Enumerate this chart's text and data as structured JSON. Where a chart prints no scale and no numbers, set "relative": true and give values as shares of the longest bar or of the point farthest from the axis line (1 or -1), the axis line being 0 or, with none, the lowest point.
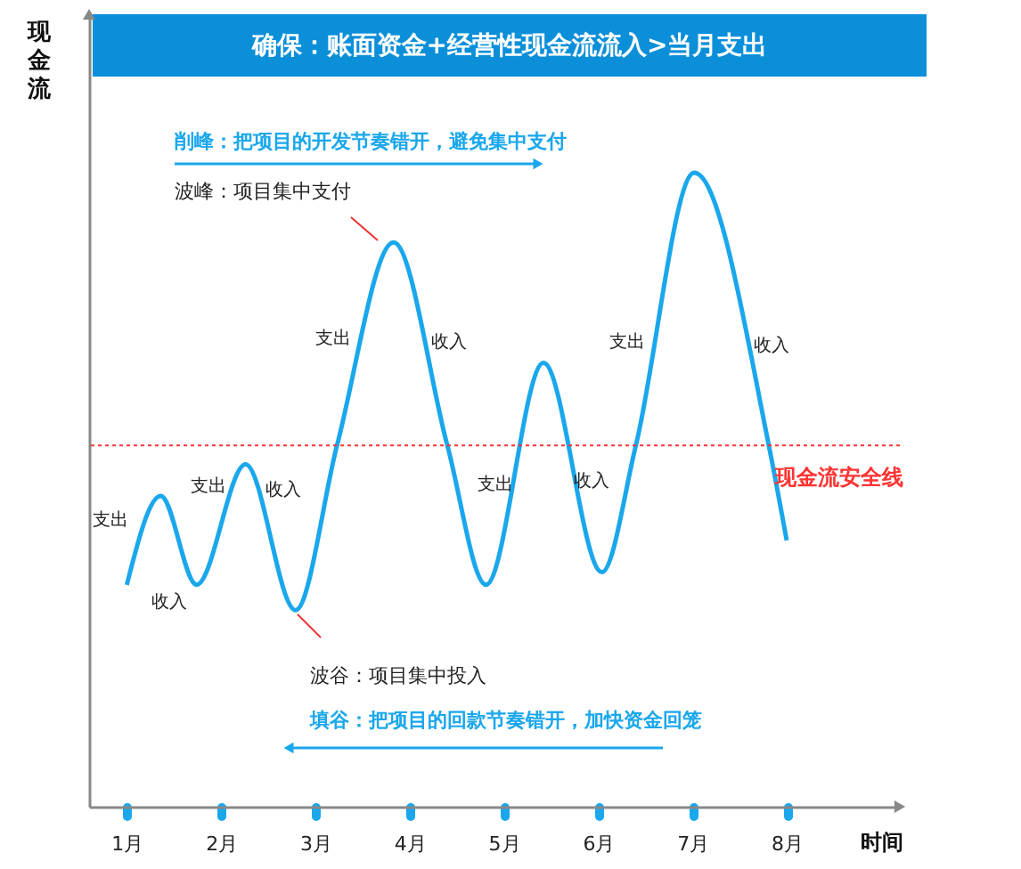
{
  "chart_data": {
    "type": "line",
    "relative": true,
    "title": "确保：账面资金+经营性现金流流入>当月支出",
    "ylabel": "现金流",
    "xlabel": "时间",
    "xlim": [
      0.6,
      9.2
    ],
    "xticks": [
      {
        "value": 1,
        "label": "1月"
      },
      {
        "value": 2,
        "label": "2月"
      },
      {
        "value": 3,
        "label": "3月"
      },
      {
        "value": 4,
        "label": "4月"
      },
      {
        "value": 5,
        "label": "5月"
      },
      {
        "value": 6,
        "label": "6月"
      },
      {
        "value": 7,
        "label": "7月"
      },
      {
        "value": 8,
        "label": "8月"
      }
    ],
    "series": [
      {
        "color": "#1aa7ec",
        "x": [
          1.0,
          1.36,
          1.74,
          2.26,
          2.79,
          3.23,
          3.83,
          4.4,
          4.81,
          5.42,
          6.04,
          6.4,
          7.02,
          7.81,
          8.0
        ],
        "values": [
          0.35,
          0.49,
          0.35,
          0.54,
          0.31,
          0.57,
          0.89,
          0.57,
          0.35,
          0.7,
          0.37,
          0.57,
          1.0,
          0.57,
          0.42
        ]
      }
    ],
    "ref_lines": [
      {
        "axis": "y",
        "value": 0.57,
        "label": "现金流安全线",
        "color": "#ff3333",
        "line_style": "dotted"
      }
    ],
    "annotations": [
      "削峰：把项目的开发节奏错开，避免集中支付",
      "波峰：项目集中支付",
      "波谷：项目集中投入",
      "填谷：把项目的回款节奏错开，加快资金回笼",
      "支出",
      "支出",
      "支出",
      "支出",
      "支出",
      "收入",
      "收入",
      "收入",
      "收入",
      "收入"
    ],
    "grid": false
  }
}
